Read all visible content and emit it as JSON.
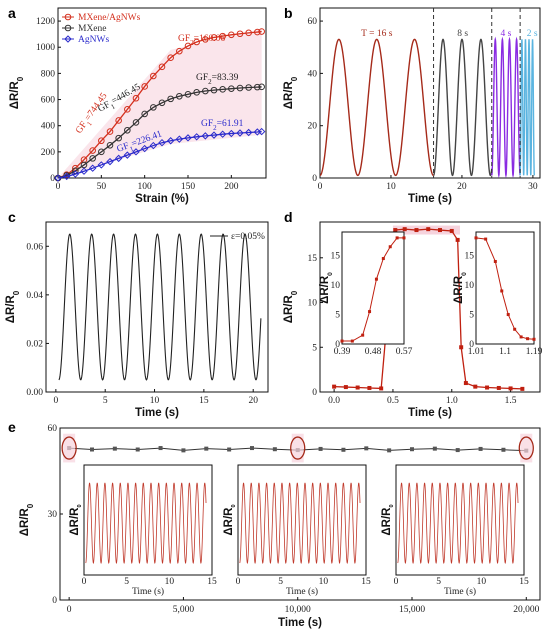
{
  "panel_labels": [
    "a",
    "b",
    "c",
    "d",
    "e"
  ],
  "chart_data": [
    {
      "id": "a",
      "type": "scatter",
      "xlabel": "Strain (%)",
      "ylabel": "ΔR/R0",
      "xlim": [
        0,
        240
      ],
      "ylim": [
        0,
        1300
      ],
      "xticks": [
        0,
        50,
        100,
        150,
        200
      ],
      "yticks": [
        0,
        200,
        400,
        600,
        800,
        1000,
        1200
      ],
      "legend": {
        "placement": "top-left",
        "entries": [
          "MXene/AgNWs",
          "MXene",
          "AgNWs"
        ]
      },
      "series": [
        {
          "name": "MXene/AgNWs",
          "color": "#d4301e",
          "marker": "circle",
          "x": [
            0,
            10,
            20,
            30,
            40,
            50,
            60,
            70,
            80,
            90,
            100,
            110,
            120,
            130,
            140,
            150,
            160,
            170,
            180,
            190,
            200,
            210,
            220,
            230,
            235
          ],
          "y": [
            0,
            25,
            75,
            140,
            210,
            285,
            355,
            440,
            525,
            610,
            700,
            780,
            850,
            920,
            970,
            1010,
            1040,
            1060,
            1075,
            1085,
            1095,
            1103,
            1110,
            1116,
            1120
          ]
        },
        {
          "name": "MXene",
          "color": "#333333",
          "marker": "circle",
          "x": [
            0,
            10,
            20,
            30,
            40,
            50,
            60,
            70,
            80,
            90,
            100,
            110,
            120,
            130,
            140,
            150,
            160,
            170,
            180,
            190,
            200,
            210,
            220,
            230,
            235
          ],
          "y": [
            0,
            20,
            55,
            100,
            150,
            200,
            250,
            305,
            365,
            425,
            490,
            540,
            575,
            605,
            625,
            640,
            655,
            665,
            672,
            678,
            683,
            688,
            692,
            695,
            697
          ]
        },
        {
          "name": "AgNWs",
          "color": "#2b2bcc",
          "marker": "diamond",
          "x": [
            0,
            10,
            20,
            30,
            40,
            50,
            60,
            70,
            80,
            90,
            100,
            110,
            120,
            130,
            140,
            150,
            160,
            170,
            180,
            190,
            200,
            210,
            220,
            230,
            235
          ],
          "y": [
            0,
            12,
            30,
            52,
            75,
            100,
            125,
            150,
            175,
            200,
            225,
            248,
            270,
            285,
            297,
            307,
            315,
            322,
            328,
            335,
            340,
            344,
            348,
            352,
            355
          ]
        }
      ],
      "annotations": [
        "GF1=744.45",
        "GF2=160.06",
        "GF1=446.45",
        "GF2=83.39",
        "GF1=226.41",
        "GF2=61.91"
      ]
    },
    {
      "id": "b",
      "type": "line",
      "xlabel": "Time (s)",
      "ylabel": "ΔR/R0",
      "xlim": [
        0,
        31
      ],
      "ylim": [
        0,
        65
      ],
      "xticks": [
        0,
        10,
        20,
        30
      ],
      "yticks": [
        0,
        20,
        40,
        60
      ],
      "segments": [
        {
          "label": "T = 16 s",
          "start": 0,
          "end": 16,
          "period": 5.33,
          "color": "#a52a1a"
        },
        {
          "label": "8 s",
          "start": 16,
          "end": 24.2,
          "period": 2.67,
          "color": "#444444"
        },
        {
          "label": "4 s",
          "start": 24.2,
          "end": 28.2,
          "period": 1.0,
          "color": "#8a2be2"
        },
        {
          "label": "2 s",
          "start": 28.2,
          "end": 30.2,
          "period": 0.5,
          "color": "#5ab4e0"
        }
      ],
      "amplitude": 52
    },
    {
      "id": "c",
      "type": "line",
      "xlabel": "Time (s)",
      "ylabel": "ΔR/R0",
      "xlim": [
        -1,
        21.5
      ],
      "ylim": [
        0,
        0.07
      ],
      "xticks": [
        0,
        5,
        10,
        15,
        20
      ],
      "yticks": [
        0.0,
        0.02,
        0.04,
        0.06
      ],
      "legend": {
        "placement": "top-right",
        "entries": [
          "ε=0.05%"
        ]
      },
      "series": [
        {
          "name": "ε=0.05%",
          "color": "#222222",
          "period": 2.22,
          "min": 0.005,
          "max": 0.065
        }
      ]
    },
    {
      "id": "d",
      "type": "line",
      "xlabel": "Time (s)",
      "ylabel": "ΔR/R0",
      "xlim": [
        -0.12,
        1.75
      ],
      "ylim": [
        0,
        19
      ],
      "xticks": [
        0.0,
        0.5,
        1.0,
        1.5
      ],
      "yticks": [
        0,
        5,
        10,
        15
      ],
      "series": [
        {
          "color": "#c02010",
          "x": [
            0,
            0.1,
            0.2,
            0.3,
            0.4,
            0.45,
            0.48,
            0.52,
            0.6,
            0.7,
            0.8,
            0.9,
            1.0,
            1.05,
            1.08,
            1.12,
            1.2,
            1.3,
            1.4,
            1.5,
            1.6
          ],
          "y": [
            0.6,
            0.55,
            0.5,
            0.45,
            0.4,
            8,
            17.5,
            18.1,
            18.2,
            18.1,
            18.2,
            18.1,
            18.0,
            17,
            5,
            1.0,
            0.6,
            0.5,
            0.45,
            0.4,
            0.35
          ]
        }
      ],
      "insets": [
        {
          "ylabel": "ΔR/R0",
          "xticks": [
            "0.39",
            "0.48",
            "0.57"
          ],
          "yticks": [
            0,
            5,
            10,
            15
          ],
          "x": [
            0.39,
            0.42,
            0.45,
            0.47,
            0.49,
            0.51,
            0.53,
            0.55,
            0.57
          ],
          "y": [
            0.5,
            0.5,
            1.5,
            5.5,
            11,
            14.5,
            16.5,
            18,
            18
          ]
        },
        {
          "ylabel": "ΔR/R0",
          "xticks": [
            "1.01",
            "1.1",
            "1.19"
          ],
          "yticks": [
            0,
            5,
            10,
            15
          ],
          "x": [
            1.01,
            1.04,
            1.07,
            1.09,
            1.11,
            1.13,
            1.15,
            1.17,
            1.19
          ],
          "y": [
            18,
            17.8,
            14,
            9,
            5,
            2.5,
            1.2,
            0.9,
            0.8
          ]
        }
      ]
    },
    {
      "id": "e",
      "type": "line",
      "xlabel": "Time (s)",
      "ylabel": "ΔR/R0",
      "xlim": [
        -400,
        20600
      ],
      "ylim": [
        0,
        60
      ],
      "xticks": [
        "0",
        "5,000",
        "10,000",
        "15,000",
        "20,000"
      ],
      "xtick_values": [
        0,
        5000,
        10000,
        15000,
        20000
      ],
      "yticks": [
        0,
        30,
        60
      ],
      "series": [
        {
          "color": "#333333",
          "x": [
            0,
            1000,
            2000,
            3000,
            4000,
            5000,
            6000,
            7000,
            8000,
            9000,
            10000,
            11000,
            12000,
            13000,
            14000,
            15000,
            16000,
            17000,
            18000,
            19000,
            20000
          ],
          "y": [
            53,
            52.5,
            52.8,
            52.5,
            53,
            52.2,
            52.8,
            52.5,
            53,
            52.6,
            52.3,
            52.7,
            52.4,
            52.9,
            52.2,
            52.6,
            52.8,
            52.3,
            52.7,
            52.4,
            52.1
          ]
        }
      ],
      "insets": [
        {
          "ylabel": "ΔR/R0",
          "xlabel": "Time (s)",
          "xticks": [
            "0",
            "5",
            "10",
            "15"
          ]
        },
        {
          "ylabel": "ΔR/R0",
          "xlabel": "Time (s)",
          "xticks": [
            "0",
            "5",
            "10",
            "15"
          ]
        },
        {
          "ylabel": "ΔR/R0",
          "xlabel": "Time (s)",
          "xticks": [
            "0",
            "5",
            "10",
            "15"
          ]
        }
      ]
    }
  ]
}
